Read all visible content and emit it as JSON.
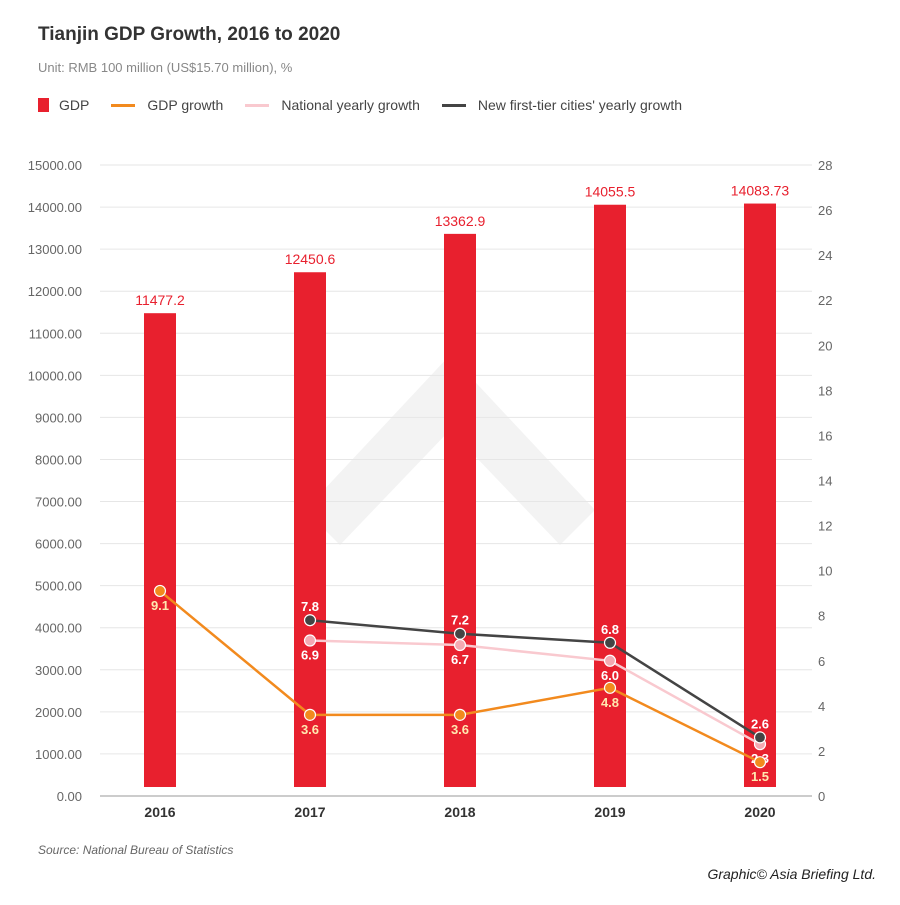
{
  "chart_data": {
    "type": "bar+line",
    "title": "Tianjin GDP Growth, 2016 to 2020",
    "subtitle": "Unit: RMB 100 million (US$15.70 million), %",
    "categories": [
      "2016",
      "2017",
      "2018",
      "2019",
      "2020"
    ],
    "bars": {
      "name": "GDP",
      "values": [
        11477.2,
        12450.6,
        13362.9,
        14055.5,
        14083.73
      ],
      "labels": [
        "11477.2",
        "12450.6",
        "13362.9",
        "14055.5",
        "14083.73"
      ],
      "color": "#e8202e"
    },
    "lines": [
      {
        "name": "GDP growth",
        "values": [
          9.1,
          3.6,
          3.6,
          4.8,
          1.5
        ],
        "color": "#f28a1e",
        "label_pos": "below"
      },
      {
        "name": "National yearly growth",
        "values": [
          null,
          6.9,
          6.7,
          6.0,
          2.3
        ],
        "color": "#f9c9cf",
        "label_pos": "below"
      },
      {
        "name": "New first-tier cities' yearly growth",
        "values": [
          null,
          7.8,
          7.2,
          6.8,
          2.6
        ],
        "color": "#444444",
        "label_pos": "above"
      }
    ],
    "y_left": {
      "range": [
        0,
        15000
      ],
      "ticks": [
        "0.00",
        "1000.00",
        "2000.00",
        "3000.00",
        "4000.00",
        "5000.00",
        "6000.00",
        "7000.00",
        "8000.00",
        "9000.00",
        "10000.00",
        "11000.00",
        "12000.00",
        "13000.00",
        "14000.00",
        "15000.00"
      ]
    },
    "y_right": {
      "range": [
        0,
        28
      ],
      "ticks": [
        "0",
        "2",
        "4",
        "6",
        "8",
        "10",
        "12",
        "14",
        "16",
        "18",
        "20",
        "22",
        "24",
        "26",
        "28"
      ]
    },
    "grid": true,
    "legend": "top-left"
  },
  "source": "Source: National Bureau of Statistics",
  "credit": "Graphic© Asia Briefing Ltd."
}
